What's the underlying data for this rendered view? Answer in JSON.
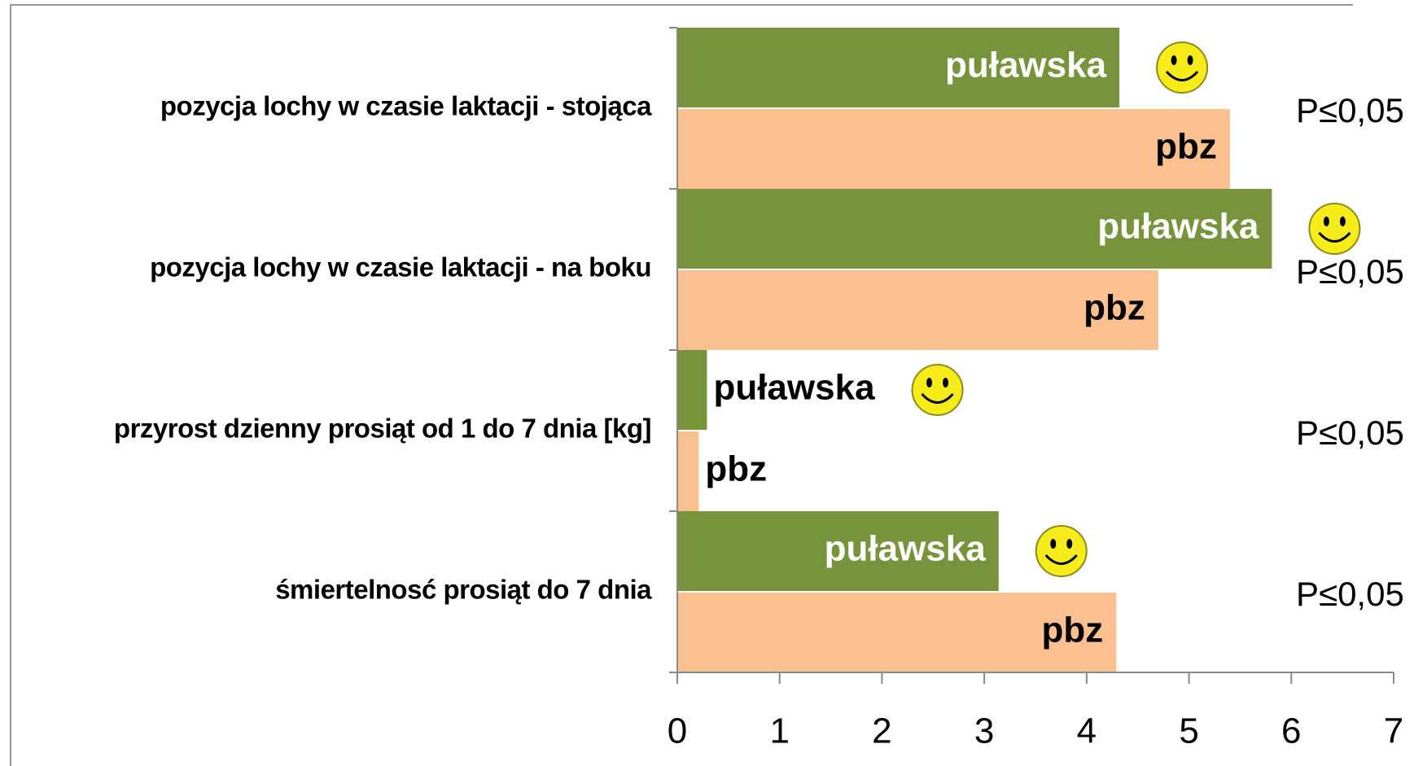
{
  "chart_data": {
    "type": "barh",
    "categories": [
      "pozycja lochy w czasie laktacji - stojąca",
      "pozycja lochy w czasie laktacji - na boku",
      "przyrost dzienny prosiąt od 1 do 7 dnia [kg]",
      "śmiertelnosć prosiąt do 7 dnia"
    ],
    "series": [
      {
        "name": "puławska",
        "color": "#77933c",
        "values": [
          4.32,
          5.81,
          0.29,
          3.14
        ]
      },
      {
        "name": "pbz",
        "color": "#fac090",
        "values": [
          5.4,
          4.7,
          0.21,
          4.29
        ]
      }
    ],
    "annotations": [
      "P≤0,05",
      "P≤0,05",
      "P≤0,05",
      "P≤0,05"
    ],
    "xlim": [
      0,
      7
    ],
    "xticks": [
      0,
      1,
      2,
      3,
      4,
      5,
      6,
      7
    ],
    "grid": false
  }
}
